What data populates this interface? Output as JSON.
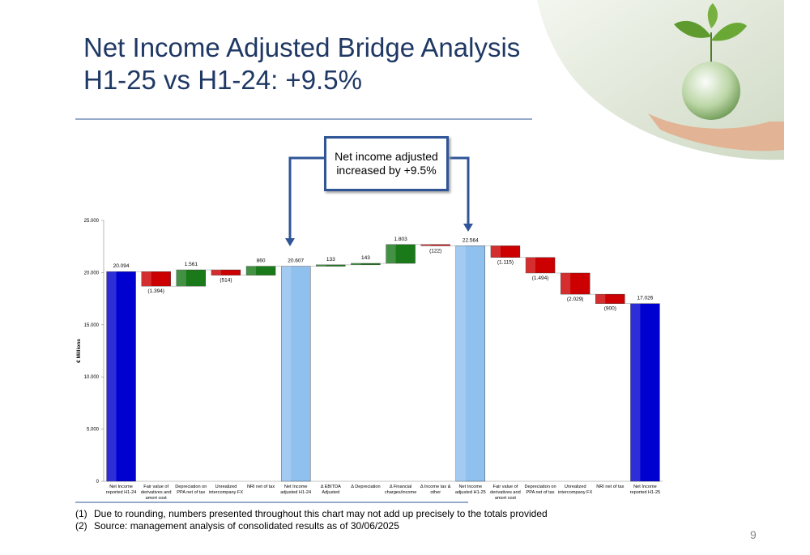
{
  "title": "Net Income Adjusted Bridge Analysis",
  "subtitle": "H1-25 vs H1-24: +9.5%",
  "callout": "Net income adjusted increased by +9.5%",
  "footnotes": [
    {
      "number": "(1)",
      "text": "Due to rounding, numbers presented throughout this chart may not add up precisely to the totals provided"
    },
    {
      "number": "(2)",
      "text": "Source: management analysis of consolidated results as of 30/06/2025"
    }
  ],
  "page_number": "9",
  "chart_data": {
    "type": "waterfall",
    "y_label": "€ Millions",
    "categories": [
      "Net Income reported H1-24",
      "Fair value of derivatives and amort cost",
      "Depreciation on PPA net of tax",
      "Unrealized intercompany FX",
      "NRI net of tax",
      "Net Income adjusted H1-24",
      "Δ EBITDA Adjusted",
      "Δ Depreciation",
      "Δ Financial charges/income",
      "Δ Income tax & other",
      "Net Income adjusted H1-25",
      "Fair value of derivatives and amort cost",
      "Depreciation on PPA net of tax",
      "Unrealized intercompany FX",
      "NRI net of tax",
      "Net Income reported H1-25"
    ],
    "values": [
      20094,
      -1394,
      1561,
      -514,
      860,
      20607,
      133,
      143,
      1803,
      -122,
      22564,
      -1115,
      -1494,
      -2029,
      -900,
      17026
    ],
    "value_labels": [
      "20.094",
      "(1.394)",
      "1.561",
      "(514)",
      "860",
      "20.607",
      "133",
      "143",
      "1.803",
      "(122)",
      "22.564",
      "(1.115)",
      "(1.494)",
      "(2.029)",
      "(900)",
      "17.026"
    ],
    "colors": [
      "#0000d0",
      "#cc0000",
      "#1a7a1a",
      "#cc0000",
      "#1a7a1a",
      "#8fc0ee",
      "#1a7a1a",
      "#1a7a1a",
      "#1a7a1a",
      "#cc0000",
      "#8fc0ee",
      "#cc0000",
      "#cc0000",
      "#cc0000",
      "#cc0000",
      "#0000d0"
    ],
    "increase_color": "#1a7a1a",
    "decrease_color": "#cc0000",
    "ylim": [
      0,
      25000
    ],
    "yticks": [
      0,
      {
        "value": 5000,
        "label": "5.000"
      },
      {
        "value": 10000,
        "label": "10.000"
      },
      {
        "value": 15000,
        "label": "15.000"
      },
      {
        "value": 20000,
        "label": "20.000"
      },
      {
        "value": 25000,
        "label": "25.000"
      }
    ]
  }
}
